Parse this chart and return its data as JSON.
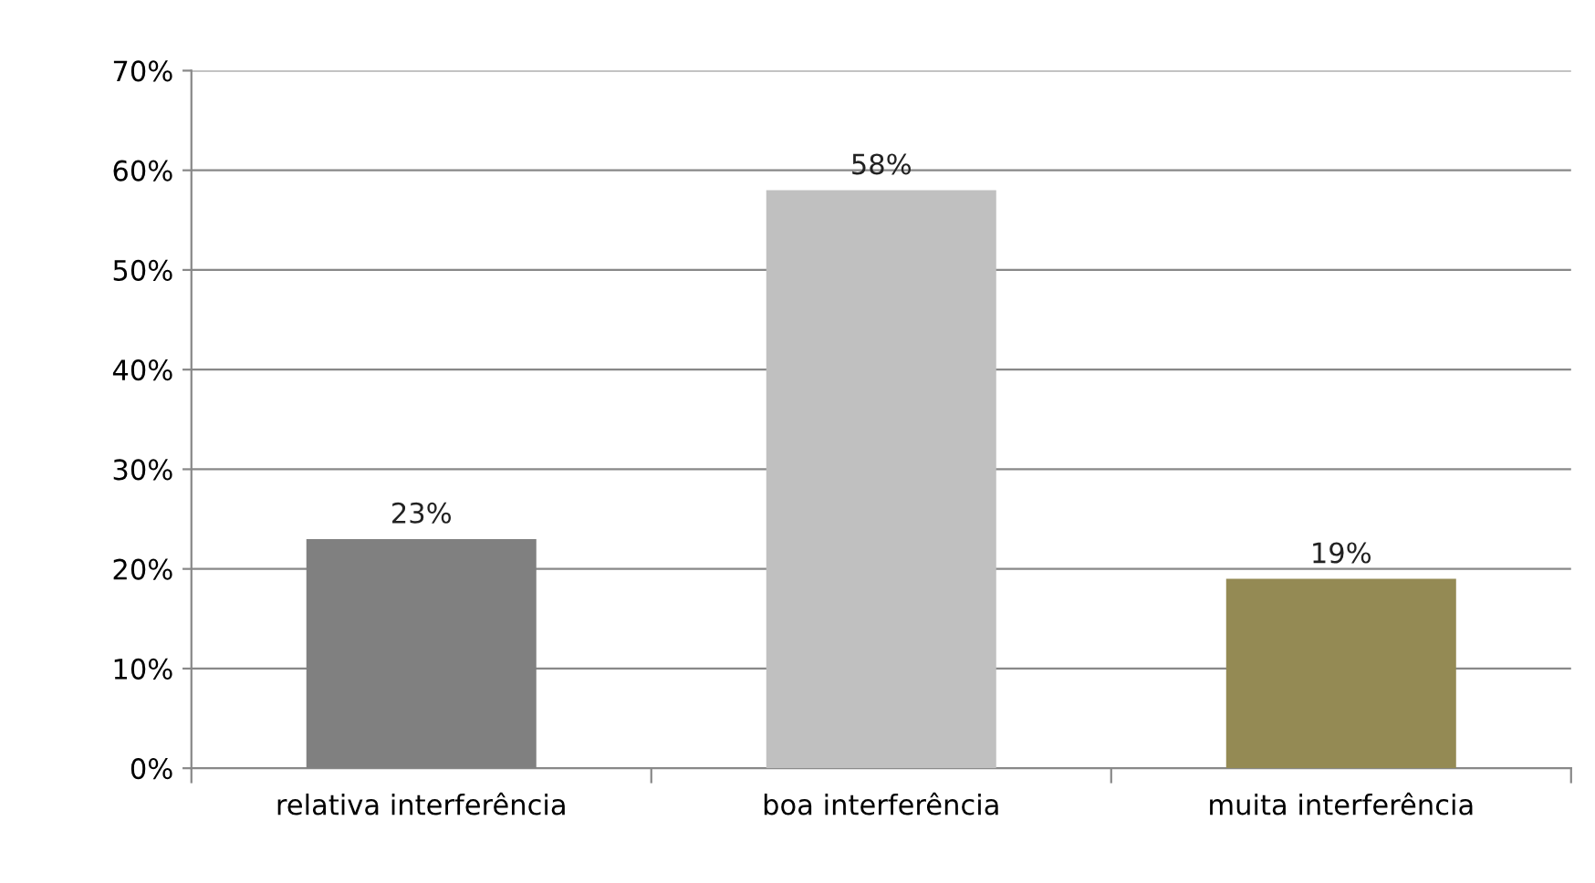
{
  "chart_data": {
    "type": "bar",
    "categories": [
      "relativa interferência",
      "boa interferência",
      "muita interferência"
    ],
    "values": [
      23,
      58,
      19
    ],
    "colors": [
      "#808080",
      "#c0c0c0",
      "#948a54"
    ],
    "value_labels": [
      "23%",
      "58%",
      "19%"
    ],
    "ylim": [
      0,
      70
    ],
    "yticks": [
      {
        "value": 0,
        "label": "0%"
      },
      {
        "value": 10,
        "label": "10%"
      },
      {
        "value": 20,
        "label": "20%"
      },
      {
        "value": 30,
        "label": "30%"
      },
      {
        "value": 40,
        "label": "40%"
      },
      {
        "value": 50,
        "label": "50%"
      },
      {
        "value": 60,
        "label": "60%"
      },
      {
        "value": 70,
        "label": "70%"
      }
    ],
    "grid": "y"
  }
}
